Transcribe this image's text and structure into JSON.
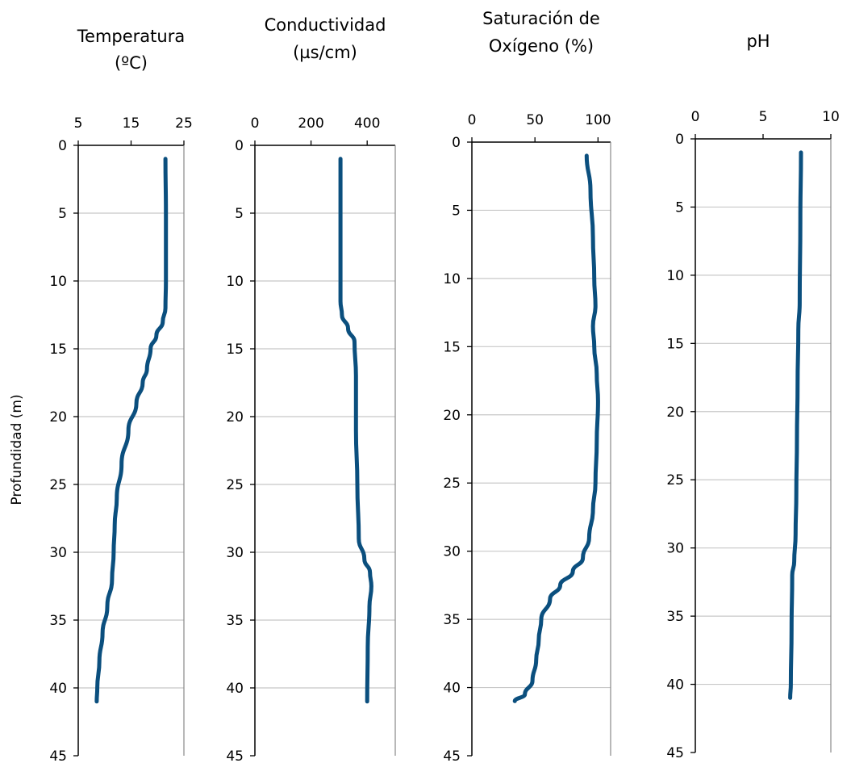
{
  "colors": {
    "series": "#0b4f7e",
    "grid": "#c8c8c8",
    "axis": "#000000"
  },
  "y_axis_label": "Profundidad (m)",
  "chart_data": [
    {
      "type": "line",
      "title_lines": [
        "Temperatura",
        "(ºC)"
      ],
      "x_ticks": [
        "5",
        "15",
        "25"
      ],
      "xlim": [
        5,
        25
      ],
      "ylim": [
        0,
        45
      ],
      "y_reversed": true,
      "y_ticks": [
        "0",
        "5",
        "10",
        "15",
        "20",
        "25",
        "30",
        "35",
        "40",
        "45"
      ],
      "grid": "horizontal",
      "points": [
        {
          "x": 21.5,
          "y": 1
        },
        {
          "x": 21.6,
          "y": 5
        },
        {
          "x": 21.6,
          "y": 10
        },
        {
          "x": 21.5,
          "y": 12
        },
        {
          "x": 21.0,
          "y": 13
        },
        {
          "x": 19.8,
          "y": 14
        },
        {
          "x": 18.7,
          "y": 15
        },
        {
          "x": 18.0,
          "y": 16.5
        },
        {
          "x": 17.2,
          "y": 17.5
        },
        {
          "x": 16.0,
          "y": 19
        },
        {
          "x": 14.5,
          "y": 21
        },
        {
          "x": 13.2,
          "y": 23.5
        },
        {
          "x": 12.3,
          "y": 26
        },
        {
          "x": 11.9,
          "y": 28
        },
        {
          "x": 11.7,
          "y": 30
        },
        {
          "x": 11.4,
          "y": 32
        },
        {
          "x": 10.5,
          "y": 34
        },
        {
          "x": 9.6,
          "y": 36
        },
        {
          "x": 9.0,
          "y": 38
        },
        {
          "x": 8.6,
          "y": 40
        },
        {
          "x": 8.5,
          "y": 41
        }
      ]
    },
    {
      "type": "line",
      "title_lines": [
        "Conductividad",
        "(µs/cm)"
      ],
      "x_ticks": [
        "0",
        "200",
        "400"
      ],
      "xlim": [
        0,
        500
      ],
      "ylim": [
        0,
        45
      ],
      "y_reversed": true,
      "y_ticks": [
        "0",
        "5",
        "10",
        "15",
        "20",
        "25",
        "30",
        "35",
        "40",
        "45"
      ],
      "grid": "horizontal",
      "points": [
        {
          "x": 305,
          "y": 1
        },
        {
          "x": 305,
          "y": 5
        },
        {
          "x": 305,
          "y": 11.5
        },
        {
          "x": 310,
          "y": 12.5
        },
        {
          "x": 332,
          "y": 13.5
        },
        {
          "x": 355,
          "y": 14.5
        },
        {
          "x": 360,
          "y": 17
        },
        {
          "x": 360,
          "y": 21
        },
        {
          "x": 365,
          "y": 25
        },
        {
          "x": 370,
          "y": 29
        },
        {
          "x": 390,
          "y": 30.5
        },
        {
          "x": 410,
          "y": 31.5
        },
        {
          "x": 415,
          "y": 32.5
        },
        {
          "x": 408,
          "y": 34
        },
        {
          "x": 402,
          "y": 37
        },
        {
          "x": 400,
          "y": 41
        }
      ]
    },
    {
      "type": "line",
      "title_lines": [
        "Saturación de",
        "Oxígeno (%)"
      ],
      "x_ticks": [
        "0",
        "50",
        "100"
      ],
      "xlim": [
        0,
        110
      ],
      "ylim": [
        0,
        45
      ],
      "y_reversed": true,
      "y_ticks": [
        "0",
        "5",
        "10",
        "15",
        "20",
        "25",
        "30",
        "35",
        "40",
        "45"
      ],
      "grid": "horizontal",
      "points": [
        {
          "x": 91,
          "y": 1
        },
        {
          "x": 94,
          "y": 3.5
        },
        {
          "x": 96,
          "y": 7
        },
        {
          "x": 97,
          "y": 10
        },
        {
          "x": 98,
          "y": 12
        },
        {
          "x": 96,
          "y": 13.5
        },
        {
          "x": 97,
          "y": 15
        },
        {
          "x": 99,
          "y": 17
        },
        {
          "x": 100,
          "y": 19
        },
        {
          "x": 99,
          "y": 22
        },
        {
          "x": 98,
          "y": 25
        },
        {
          "x": 96,
          "y": 27
        },
        {
          "x": 93,
          "y": 29
        },
        {
          "x": 88,
          "y": 30.5
        },
        {
          "x": 80,
          "y": 31.5
        },
        {
          "x": 70,
          "y": 32.5
        },
        {
          "x": 62,
          "y": 33.5
        },
        {
          "x": 55,
          "y": 35
        },
        {
          "x": 53,
          "y": 36.5
        },
        {
          "x": 51,
          "y": 38
        },
        {
          "x": 48,
          "y": 39.5
        },
        {
          "x": 42,
          "y": 40.5
        },
        {
          "x": 34,
          "y": 41
        }
      ]
    },
    {
      "type": "line",
      "title_lines": [
        "pH"
      ],
      "x_ticks": [
        "0",
        "5",
        "10"
      ],
      "xlim": [
        0,
        10
      ],
      "ylim": [
        0,
        45
      ],
      "y_reversed": true,
      "y_ticks": [
        "0",
        "5",
        "10",
        "15",
        "20",
        "25",
        "30",
        "35",
        "40",
        "45"
      ],
      "grid": "horizontal",
      "points": [
        {
          "x": 7.8,
          "y": 1
        },
        {
          "x": 7.75,
          "y": 6
        },
        {
          "x": 7.7,
          "y": 12
        },
        {
          "x": 7.6,
          "y": 14
        },
        {
          "x": 7.55,
          "y": 18
        },
        {
          "x": 7.5,
          "y": 22
        },
        {
          "x": 7.45,
          "y": 26
        },
        {
          "x": 7.4,
          "y": 29
        },
        {
          "x": 7.3,
          "y": 31
        },
        {
          "x": 7.15,
          "y": 32
        },
        {
          "x": 7.1,
          "y": 36
        },
        {
          "x": 7.05,
          "y": 40
        },
        {
          "x": 7.0,
          "y": 41
        }
      ]
    }
  ]
}
